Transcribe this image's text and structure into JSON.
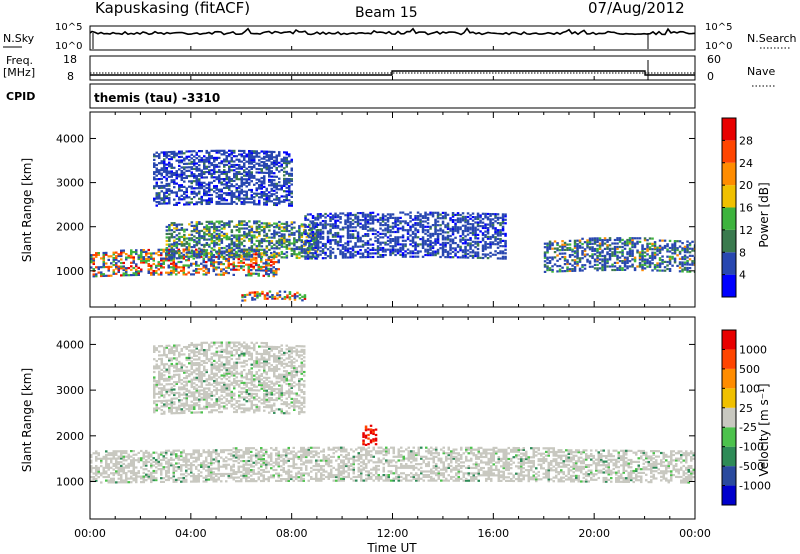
{
  "header": {
    "station": "Kapuskasing (fitACF)",
    "beam": "Beam 15",
    "date": "07/Aug/2012"
  },
  "param_panels": {
    "nsky_label": "N.Sky",
    "nsky_ticks": [
      "10^5",
      "10^0"
    ],
    "nsearch_label": "N.Search",
    "nsearch_ticks": [
      "10^5",
      "10^0"
    ],
    "freq_label": "Freq.",
    "freq_unit": "[MHz]",
    "freq_ticks": [
      "18",
      "8"
    ],
    "nave_label": "Nave",
    "nave_ticks": [
      "60",
      "0"
    ],
    "cpid_label": "CPID",
    "cpid_value": "themis (tau) -3310"
  },
  "chart_data": [
    {
      "type": "heatmap",
      "name": "power",
      "ylabel": "Slant Range [km]",
      "ylim": [
        180,
        4600
      ],
      "yticks": [
        "4000",
        "3000",
        "2000",
        "1000"
      ],
      "xlim": [
        0,
        24
      ],
      "colorbar": {
        "label": "Power [dB]",
        "ticks": [
          "28",
          "24",
          "20",
          "16",
          "12",
          "8",
          "4"
        ],
        "colors": [
          "#0000ff",
          "#2847b0",
          "#3a7a4e",
          "#3db33d",
          "#f0c000",
          "#ff8c00",
          "#ff4500",
          "#e80000"
        ]
      },
      "bands": [
        {
          "start_h": 0.0,
          "end_h": 7.5,
          "r_low": 900,
          "r_high": 1450,
          "level": "high"
        },
        {
          "start_h": 3.0,
          "end_h": 9.0,
          "r_low": 1300,
          "r_high": 2100,
          "level": "mid"
        },
        {
          "start_h": 8.5,
          "end_h": 16.5,
          "r_low": 1300,
          "r_high": 2300,
          "level": "low"
        },
        {
          "start_h": 18.0,
          "end_h": 24.0,
          "r_low": 1000,
          "r_high": 1700,
          "level": "low-mid"
        },
        {
          "start_h": 2.5,
          "end_h": 8.0,
          "r_low": 2500,
          "r_high": 3700,
          "level": "low"
        },
        {
          "start_h": 6.0,
          "end_h": 8.5,
          "r_low": 350,
          "r_high": 500,
          "level": "high"
        }
      ]
    },
    {
      "type": "heatmap",
      "name": "velocity",
      "ylabel": "Slant Range [km]",
      "ylim": [
        180,
        4600
      ],
      "yticks": [
        "4000",
        "3000",
        "2000",
        "1000"
      ],
      "xlim": [
        0,
        24
      ],
      "xticks": [
        "00:00",
        "04:00",
        "08:00",
        "12:00",
        "16:00",
        "20:00",
        "00:00"
      ],
      "xlabel": "Time UT",
      "colorbar": {
        "label": "Velocity [m s⁻¹]",
        "ticks": [
          "1000",
          "500",
          "100",
          "25",
          "-25",
          "-100",
          "-500",
          "-1000"
        ],
        "colors": [
          "#0000cc",
          "#2a4a9e",
          "#2e8b57",
          "#4cc24c",
          "#c8c8c0",
          "#f0c000",
          "#ff8c00",
          "#ff4500",
          "#e80000"
        ]
      },
      "bands": [
        {
          "start_h": 0.0,
          "end_h": 24.0,
          "r_low": 1000,
          "r_high": 1700,
          "level": "gray"
        },
        {
          "start_h": 2.5,
          "end_h": 8.5,
          "r_low": 2500,
          "r_high": 4000,
          "level": "gray"
        },
        {
          "start_h": 10.8,
          "end_h": 11.3,
          "r_low": 1800,
          "r_high": 2200,
          "level": "red"
        }
      ]
    }
  ]
}
